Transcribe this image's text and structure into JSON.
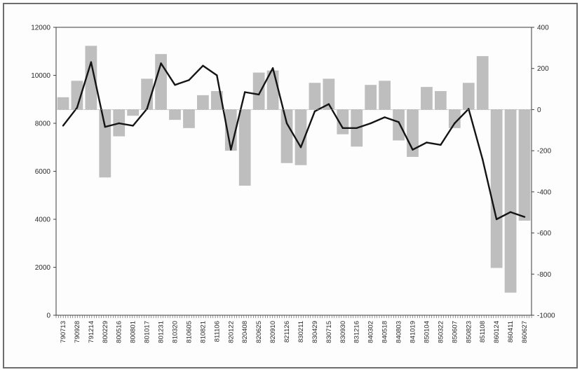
{
  "chart_data": {
    "type": "bar",
    "title": "",
    "xlabel": "",
    "ylabel": "",
    "y_left": {
      "ylim": [
        0,
        12000
      ],
      "ticks": [
        0,
        2000,
        4000,
        6000,
        8000,
        10000,
        12000
      ]
    },
    "y_right": {
      "ylim": [
        -1000,
        400
      ],
      "ticks": [
        -1000,
        -800,
        -600,
        -400,
        -200,
        0,
        200,
        400
      ]
    },
    "grid": false,
    "legend": "none",
    "categories": [
      "790713",
      "790928",
      "791214",
      "800229",
      "800516",
      "800801",
      "801017",
      "801231",
      "810320",
      "810605",
      "810821",
      "811106",
      "820122",
      "820408",
      "820625",
      "820910",
      "821126",
      "830211",
      "830429",
      "830715",
      "830930",
      "831216",
      "840302",
      "840518",
      "840803",
      "841019",
      "850104",
      "850322",
      "850607",
      "850823",
      "851108",
      "860124",
      "860411",
      "860627"
    ],
    "series": [
      {
        "axis": "left",
        "style": "line",
        "color": "#141414",
        "values": [
          7900,
          8650,
          10550,
          7850,
          8000,
          7900,
          8600,
          10500,
          9600,
          9800,
          10400,
          10000,
          6900,
          9300,
          9200,
          10300,
          8000,
          7000,
          8500,
          8800,
          7800,
          7800,
          8000,
          8250,
          8050,
          6900,
          7200,
          7100,
          8000,
          8600,
          6500,
          4000,
          4300,
          4100
        ]
      },
      {
        "axis": "right",
        "style": "bar",
        "color": "#8a8a8a",
        "values": [
          60,
          140,
          310,
          -330,
          -130,
          -30,
          150,
          270,
          -50,
          -90,
          70,
          90,
          -200,
          -370,
          180,
          190,
          -260,
          -270,
          130,
          150,
          -120,
          -180,
          120,
          140,
          -150,
          -230,
          110,
          90,
          -90,
          130,
          260,
          -770,
          -890,
          -540
        ]
      }
    ]
  }
}
